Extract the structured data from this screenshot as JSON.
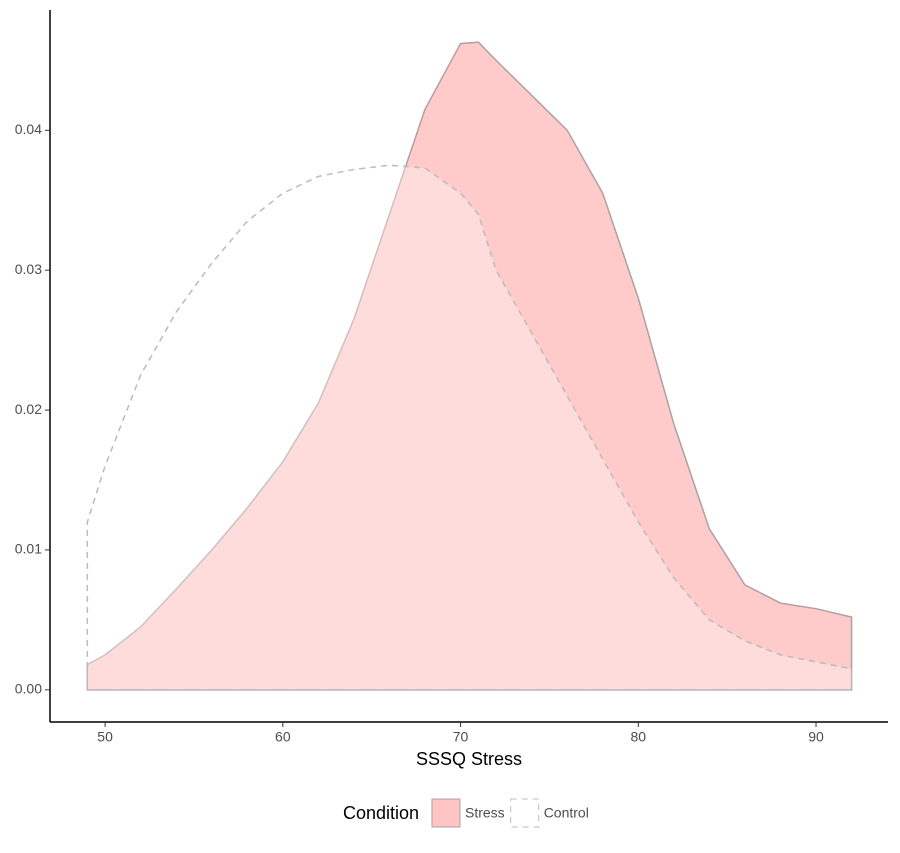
{
  "chart_data": {
    "type": "density",
    "x_label": "SSSQ Stress",
    "legend_title": "Condition",
    "legend_position": "bottom",
    "x": [
      49,
      50,
      52,
      54,
      56,
      58,
      60,
      62,
      64,
      66,
      68,
      70,
      71,
      72,
      74,
      76,
      78,
      80,
      82,
      84,
      86,
      88,
      90,
      92
    ],
    "series": [
      {
        "name": "Stress",
        "color": "#ffc4c4",
        "linestyle": "solid",
        "values": [
          0.0018,
          0.0025,
          0.0045,
          0.0072,
          0.01,
          0.013,
          0.0163,
          0.0205,
          0.0265,
          0.034,
          0.0415,
          0.0462,
          0.0463,
          0.045,
          0.0425,
          0.04,
          0.0355,
          0.028,
          0.019,
          0.0115,
          0.0075,
          0.0062,
          0.0058,
          0.0052
        ]
      },
      {
        "name": "Control",
        "color": "#ffffff",
        "linestyle": "dashed",
        "values": [
          0.012,
          0.016,
          0.0225,
          0.027,
          0.0305,
          0.0335,
          0.0355,
          0.0367,
          0.0372,
          0.0375,
          0.0373,
          0.0355,
          0.034,
          0.03,
          0.0255,
          0.021,
          0.0165,
          0.012,
          0.008,
          0.005,
          0.0035,
          0.0025,
          0.002,
          0.0015
        ]
      }
    ],
    "xlim": [
      46.9,
      94.05
    ],
    "ylim": [
      -0.0023,
      0.0486
    ],
    "xticks": [
      50,
      60,
      70,
      80,
      90
    ],
    "yticks": [
      {
        "value": 0,
        "label": "0.00"
      },
      0.01,
      0.02,
      0.03,
      0.04
    ],
    "grid": false
  }
}
